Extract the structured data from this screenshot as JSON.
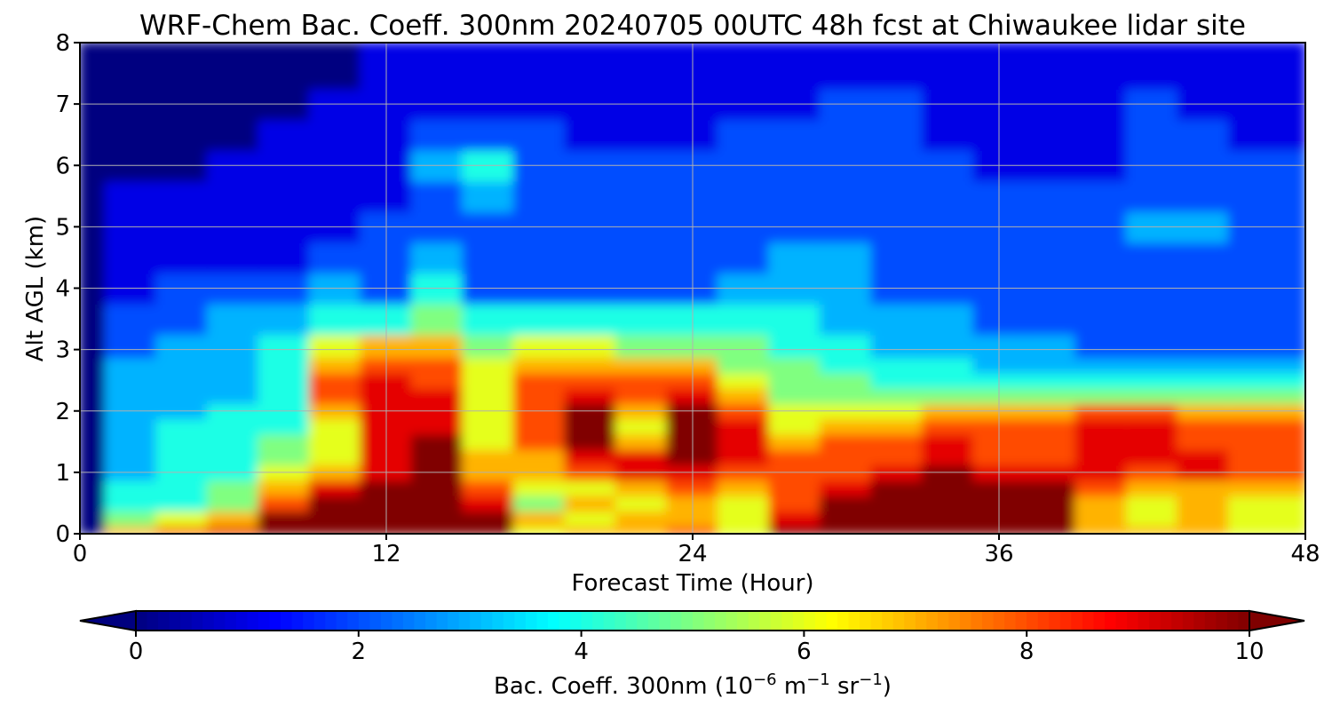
{
  "chart_data": {
    "type": "heatmap",
    "title": "WRF-Chem Bac. Coeff. 300nm  20240705 00UTC 48h fcst at Chiwaukee lidar site",
    "xlabel": "Forecast Time (Hour)",
    "ylabel": "Alt AGL (km)",
    "xlim": [
      0,
      48
    ],
    "ylim": [
      0,
      8
    ],
    "x_ticks": [
      "0",
      "12",
      "24",
      "36",
      "48"
    ],
    "y_ticks": [
      "0",
      "1",
      "2",
      "3",
      "4",
      "5",
      "6",
      "7",
      "8"
    ],
    "grid": true,
    "colormap": "jet",
    "colorbar": {
      "label_main": "Bac. Coeff. 300nm  (10",
      "label_exp1": "−6",
      "label_mid": " m",
      "label_exp2": "−1",
      "label_mid2": " sr",
      "label_exp3": "−1",
      "label_end": ")",
      "range": [
        0,
        10
      ],
      "ticks": [
        "0",
        "2",
        "4",
        "6",
        "8",
        "10"
      ],
      "extend": "both"
    },
    "x": [
      0,
      2,
      4,
      6,
      8,
      10,
      12,
      14,
      16,
      18,
      20,
      22,
      24,
      26,
      28,
      30,
      32,
      34,
      36,
      38,
      40,
      42,
      44,
      46,
      48
    ],
    "y": [
      0,
      0.25,
      0.5,
      0.75,
      1,
      1.25,
      1.5,
      1.75,
      2,
      2.25,
      2.5,
      2.75,
      3,
      3.5,
      4,
      4.5,
      5,
      5.5,
      6,
      6.5,
      7,
      7.5,
      8
    ],
    "z": [
      [
        0,
        7,
        8,
        9,
        10,
        10,
        10,
        10,
        10,
        6,
        7,
        7,
        8,
        6,
        10,
        10,
        10,
        10,
        10,
        10,
        7,
        7,
        7,
        6,
        6
      ],
      [
        0,
        5,
        6,
        7,
        10,
        10,
        10,
        10,
        10,
        7,
        6,
        7,
        7,
        6,
        9,
        10,
        10,
        10,
        10,
        10,
        7,
        6,
        7,
        6,
        6
      ],
      [
        0,
        4,
        4,
        5,
        8,
        10,
        10,
        10,
        9,
        5,
        7,
        6,
        7,
        6,
        8,
        10,
        10,
        10,
        10,
        10,
        7,
        6,
        7,
        6,
        6
      ],
      [
        0,
        4,
        4,
        5,
        7,
        9,
        10,
        10,
        8,
        6,
        6,
        7,
        8,
        7,
        8,
        9,
        10,
        10,
        10,
        10,
        8,
        7,
        7,
        7,
        7
      ],
      [
        0,
        3,
        4,
        4,
        6,
        7,
        9,
        10,
        7,
        7,
        8,
        9,
        9,
        8,
        8,
        8,
        9,
        10,
        9,
        9,
        9,
        8,
        9,
        8,
        8
      ],
      [
        0,
        3,
        4,
        4,
        5,
        6,
        9,
        10,
        7,
        7,
        9,
        9,
        10,
        9,
        8,
        8,
        8,
        9,
        8,
        8,
        9,
        9,
        9,
        8,
        8
      ],
      [
        0,
        3,
        4,
        4,
        5,
        6,
        9,
        10,
        6,
        8,
        10,
        7,
        10,
        9,
        7,
        8,
        8,
        9,
        8,
        8,
        9,
        9,
        8,
        8,
        8
      ],
      [
        0,
        3,
        4,
        4,
        4,
        6,
        9,
        9,
        6,
        8,
        10,
        6,
        10,
        9,
        6,
        7,
        7,
        8,
        8,
        8,
        9,
        9,
        8,
        8,
        8
      ],
      [
        0,
        3,
        3,
        4,
        4,
        7,
        9,
        9,
        6,
        8,
        10,
        7,
        10,
        8,
        6,
        6,
        6,
        7,
        7,
        7,
        8,
        8,
        7,
        7,
        7
      ],
      [
        0,
        3,
        3,
        3,
        4,
        8,
        9,
        9,
        6,
        8,
        9,
        8,
        9,
        7,
        5,
        5,
        5,
        5,
        5,
        5,
        5,
        5,
        5,
        5,
        5
      ],
      [
        0,
        3,
        3,
        3,
        4,
        8,
        9,
        8,
        6,
        8,
        8,
        8,
        8,
        6,
        5,
        5,
        4,
        4,
        4,
        4,
        4,
        4,
        4,
        4,
        4
      ],
      [
        0,
        3,
        3,
        3,
        4,
        7,
        8,
        8,
        6,
        7,
        7,
        7,
        7,
        5,
        5,
        4,
        4,
        4,
        3,
        3,
        3,
        3,
        3,
        3,
        3
      ],
      [
        0,
        2,
        3,
        3,
        4,
        6,
        7,
        7,
        5,
        6,
        6,
        5,
        5,
        5,
        4,
        4,
        3,
        3,
        3,
        3,
        2,
        2,
        2,
        2,
        2
      ],
      [
        0,
        2,
        2,
        3,
        3,
        4,
        4,
        5,
        4,
        4,
        4,
        4,
        4,
        4,
        4,
        3,
        3,
        3,
        2,
        2,
        2,
        2,
        2,
        2,
        2
      ],
      [
        0,
        1,
        2,
        2,
        2,
        3,
        2,
        4,
        2,
        2,
        2,
        2,
        2,
        3,
        3,
        3,
        2,
        2,
        2,
        2,
        2,
        2,
        2,
        2,
        2
      ],
      [
        0,
        1,
        1,
        1,
        1,
        2,
        2,
        3,
        2,
        2,
        2,
        2,
        2,
        2,
        3,
        3,
        2,
        2,
        2,
        2,
        2,
        2,
        2,
        2,
        2
      ],
      [
        0,
        1,
        1,
        1,
        1,
        1,
        2,
        2,
        2,
        2,
        2,
        2,
        2,
        2,
        2,
        2,
        2,
        2,
        2,
        2,
        2,
        3,
        3,
        2,
        2
      ],
      [
        0,
        1,
        1,
        1,
        1,
        1,
        1,
        2,
        3,
        2,
        2,
        2,
        2,
        2,
        2,
        2,
        2,
        2,
        2,
        2,
        2,
        2,
        2,
        2,
        2
      ],
      [
        0,
        0,
        0,
        1,
        1,
        1,
        1,
        3,
        4,
        2,
        2,
        2,
        2,
        2,
        2,
        2,
        2,
        2,
        1,
        1,
        1,
        2,
        2,
        2,
        2
      ],
      [
        0,
        0,
        0,
        0,
        1,
        1,
        1,
        2,
        2,
        2,
        1,
        1,
        1,
        2,
        2,
        2,
        2,
        1,
        1,
        1,
        1,
        2,
        2,
        1,
        1
      ],
      [
        0,
        0,
        0,
        0,
        0,
        1,
        1,
        1,
        1,
        1,
        1,
        1,
        1,
        1,
        1,
        2,
        2,
        1,
        1,
        1,
        1,
        2,
        1,
        1,
        1
      ],
      [
        0,
        0,
        0,
        0,
        0,
        0,
        1,
        1,
        1,
        1,
        1,
        1,
        1,
        1,
        1,
        1,
        1,
        1,
        1,
        1,
        1,
        1,
        1,
        1,
        1
      ],
      [
        0,
        0,
        0,
        0,
        0,
        0,
        1,
        1,
        1,
        1,
        1,
        1,
        1,
        1,
        1,
        1,
        1,
        1,
        1,
        1,
        1,
        1,
        1,
        1,
        1
      ]
    ]
  }
}
